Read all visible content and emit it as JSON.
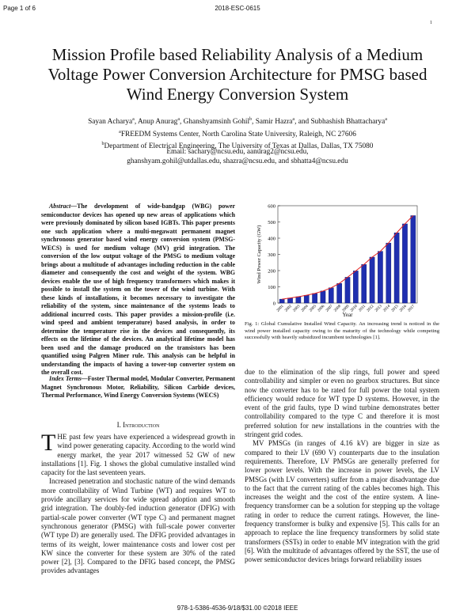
{
  "header": {
    "page": "Page 1 of 6",
    "code": "2018-ESC-0615",
    "number": "1"
  },
  "title": "Mission Profile based Reliability Analysis of a Medium Voltage Power Conversion Architecture for PMSG based Wind Energy Conversion System",
  "authors": [
    {
      "text": "Sayan Acharya",
      "sup": "a"
    },
    {
      "text": ", Anup Anurag",
      "sup": "a"
    },
    {
      "text": ", Ghanshyamsinh Gohil",
      "sup": "b"
    },
    {
      "text": ", Samir Hazra",
      "sup": "a"
    },
    {
      "text": ", and Subhashish Bhattacharya",
      "sup": "a"
    }
  ],
  "affiliations": [
    {
      "sup": "a",
      "text": "FREEDM Systems Center, North Carolina State University, Raleigh, NC 27606"
    },
    {
      "sup": "b",
      "text": "Department of Electrical Engineering, The University of Texas at Dallas, Dallas, TX 75080"
    }
  ],
  "email": "Email: sachary@ncsu.edu, aanurag2@ncsu.edu, ghanshyam.gohil@utdallas.edu, shazra@ncsu.edu, and sbhatta4@ncsu.edu",
  "abstract": {
    "label": "Abstract—",
    "text": "The development of wide-bandgap (WBG) power semiconductor devices has opened up new areas of applications which were previously dominated by silicon based IGBTs. This paper presents one such application where a multi-megawatt permanent magnet synchronous generator based wind energy conversion system (PMSG-WECS) is used for medium voltage (MV) grid integration. The conversion of the low output voltage of the PMSG to medium voltage brings about a multitude of advantages including reduction in the cable diameter and consequently the cost and weight of the system. WBG devices enable the use of high frequency transformers which makes it possible to install the system on the tower of the wind turbine. With these kinds of installations, it becomes necessary to investigate the reliability of the system, since maintenance of the systems leads to additional incurred costs. This paper provides a mission-profile (i.e. wind speed and ambient temperature) based analysis, in order to determine the temperature rise in the devices and consequently, its effects on the lifetime of the devices. An analytical lifetime model has been used and the damage produced on the transistors has been quantified using Palgren Miner rule. This analysis can be helpful in understanding the impacts of having a tower-top converter system on the overall cost."
  },
  "index_terms": {
    "label": "Index Terms—",
    "text": "Foster Thermal model, Modular Converter, Permanent Magnet Synchronous Motor, Reliability, Silicon Carbide devices, Thermal Performance, Wind Energy Conversion Systems (WECS)"
  },
  "section": {
    "heading": "I. Introduction",
    "dropcap": "T",
    "paragraphs": [
      "HE past few years have experienced a widespread growth in wind power generating capacity. According to the world wind energy market, the year 2017 witnessed 52 GW of new installations [1]. Fig. 1 shows the global cumulative installed wind capacity for the last seventeen years.",
      "Increased penetration and stochastic nature of the wind demands more controllability of Wind Turbine (WT) and requires WT to provide ancillary services for wide spread adoption and smooth grid integration. The doubly-fed induction generator (DFIG) with partial-scale power converter (WT type C) and permanent magnet synchronous generator (PMSG) with full-scale power converter (WT type D) are generally used. The DFIG provided advantages in terms of its weight, lower maintenance costs and lower cost per KW since the converter for these system are 30% of the rated power [2], [3]. Compared to the DFIG based concept, the PMSG provides advantages",
      "due to the elimination of the slip rings, full power and speed controllability and simpler or even no gearbox structures. But since now the converter has to be rated for full power the total system efficiency would reduce for WT type D systems. However, in the event of the grid faults, type D wind turbine demonstrates better controllability compared to the type C and therefore it is most preferred solution for new installations in the countries with the stringent grid codes.",
      "MV PMSGs (in ranges of 4.16 kV) are bigger in size as compared to their LV (690 V) counterparts due to the insulation requirements. Therefore, LV PMSGs are generally preferred for lower power levels. With the increase in power levels, the LV PMSGs (with LV converters) suffer from a major disadvantage due to the fact that the current rating of the cables becomes high. This increases the weight and the cost of the entire system. A line-frequency transformer can be a solution for stepping up the voltage rating in order to reduce the current ratings. However, the line-frequency transformer is bulky and expensive [5]. This calls for an approach to replace the line frequency transformers by solid state transformers (SSTs) in order to enable MV integration with the grid [6]. With the multitude of advantages offered by the SST, the use of power semiconductor devices brings forward reliability issues"
    ]
  },
  "figure_caption": "Fig. 1: Global Cumulative Installed Wind Capacity. An increasing trend is noticed in the wind power installed capacity owing to the maturity of the technology while competing successfully with heavily subsidized incumbent technologies [1].",
  "footer": "978-1-5386-4536-9/18/$31.00 ©2018 IEEE",
  "chart_data": {
    "type": "bar",
    "x_label": "Year",
    "y_label": "Wind Power Capacity (GW)",
    "categories": [
      "2001",
      "2002",
      "2003",
      "2004",
      "2005",
      "2006",
      "2007",
      "2008",
      "2009",
      "2010",
      "2011",
      "2012",
      "2013",
      "2014",
      "2015",
      "2016",
      "2017"
    ],
    "values": [
      24,
      31,
      39,
      48,
      59,
      74,
      94,
      121,
      159,
      198,
      238,
      283,
      319,
      370,
      433,
      488,
      539
    ],
    "color": "#1f2fb0",
    "trend_color": "#e02020",
    "ylim": [
      0,
      600
    ],
    "yticks": [
      0,
      100,
      200,
      300,
      400,
      500,
      600
    ]
  }
}
